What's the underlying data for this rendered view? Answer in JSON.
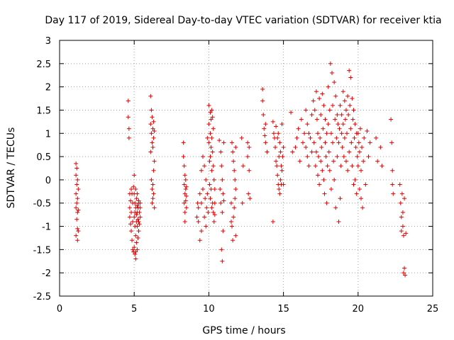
{
  "chart_data": {
    "type": "scatter",
    "title": "Day 117 of 2019, Sidereal Day-to-day VTEC variation (SDTVAR) for receiver ktia",
    "xlabel": "GPS time / hours",
    "ylabel": "SDTVAR / TECUs",
    "xlim": [
      0,
      25
    ],
    "ylim": [
      -2.5,
      3
    ],
    "xticks": [
      0,
      5,
      10,
      15,
      20,
      25
    ],
    "xtick_labels": [
      "0",
      "5",
      "10",
      "15",
      "20",
      "25"
    ],
    "yticks": [
      -2.5,
      -2,
      -1.5,
      -1,
      -0.5,
      0,
      0.5,
      1,
      1.5,
      2,
      2.5,
      3
    ],
    "ytick_labels": [
      "-2.5",
      "-2",
      "-1.5",
      "-1",
      "-0.5",
      "0",
      "0.5",
      "1",
      "1.5",
      "2",
      "2.5",
      "3"
    ],
    "grid": true,
    "marker": "+",
    "color": "#e00000",
    "series": [
      {
        "name": "SDTVAR",
        "x": [
          1.1,
          1.1,
          1.1,
          1.1,
          1.1,
          1.15,
          1.15,
          1.15,
          1.15,
          1.2,
          1.2,
          1.2,
          1.2,
          1.2,
          1.25,
          1.25,
          1.25,
          4.6,
          4.6,
          4.65,
          4.65,
          4.7,
          4.7,
          4.7,
          4.75,
          4.75,
          4.8,
          4.8,
          4.8,
          4.85,
          4.85,
          4.9,
          4.9,
          4.9,
          4.95,
          4.95,
          5.0,
          5.0,
          5.0,
          5.0,
          5.05,
          5.05,
          5.05,
          5.05,
          5.1,
          5.1,
          5.1,
          5.1,
          5.1,
          5.15,
          5.15,
          5.15,
          5.15,
          5.2,
          5.2,
          5.2,
          5.2,
          5.2,
          5.25,
          5.25,
          5.25,
          5.3,
          5.3,
          5.3,
          5.3,
          5.35,
          5.35,
          5.4,
          5.4,
          5.4,
          6.1,
          6.1,
          6.1,
          6.15,
          6.15,
          6.15,
          6.2,
          6.2,
          6.2,
          6.2,
          6.25,
          6.25,
          6.25,
          6.25,
          6.3,
          6.3,
          6.3,
          6.3,
          6.35,
          6.35,
          6.35,
          8.3,
          8.3,
          8.35,
          8.35,
          8.35,
          8.4,
          8.4,
          8.4,
          8.4,
          8.45,
          8.45,
          8.45,
          8.5,
          8.5,
          8.5,
          9.2,
          9.25,
          9.3,
          9.3,
          9.4,
          9.4,
          9.5,
          9.5,
          9.5,
          9.6,
          9.6,
          9.7,
          9.7,
          9.75,
          9.8,
          9.8,
          9.85,
          9.9,
          9.9,
          9.95,
          10.0,
          10.0,
          10.0,
          10.05,
          10.05,
          10.1,
          10.1,
          10.1,
          10.1,
          10.15,
          10.15,
          10.15,
          10.2,
          10.2,
          10.2,
          10.2,
          10.25,
          10.25,
          10.25,
          10.3,
          10.3,
          10.3,
          10.35,
          10.35,
          10.4,
          10.4,
          10.4,
          10.7,
          10.75,
          10.8,
          10.8,
          10.85,
          10.85,
          10.9,
          10.9,
          10.9,
          10.95,
          10.95,
          11.0,
          11.0,
          11.5,
          11.5,
          11.55,
          11.55,
          11.6,
          11.6,
          11.65,
          11.65,
          11.7,
          11.7,
          11.75,
          11.75,
          11.8,
          11.8,
          11.8,
          12.2,
          12.25,
          12.3,
          12.6,
          12.6,
          12.65,
          12.7,
          12.7,
          12.75,
          13.6,
          13.6,
          13.65,
          13.7,
          13.75,
          13.8,
          13.8,
          13.9,
          14.3,
          14.3,
          14.35,
          14.4,
          14.45,
          14.5,
          14.5,
          14.55,
          14.6,
          14.6,
          14.65,
          14.65,
          14.7,
          14.7,
          14.75,
          14.75,
          14.8,
          14.8,
          14.85,
          14.85,
          14.9,
          14.9,
          14.95,
          15.0,
          15.0,
          15.5,
          15.6,
          15.8,
          15.9,
          16.0,
          16.1,
          16.2,
          16.3,
          16.4,
          16.5,
          16.5,
          16.6,
          16.6,
          16.7,
          16.7,
          16.8,
          16.9,
          16.9,
          17.0,
          17.05,
          17.1,
          17.15,
          17.2,
          17.2,
          17.25,
          17.3,
          17.3,
          17.35,
          17.4,
          17.4,
          17.45,
          17.5,
          17.5,
          17.55,
          17.6,
          17.6,
          17.65,
          17.7,
          17.7,
          17.75,
          17.8,
          17.8,
          17.85,
          17.9,
          17.9,
          17.95,
          18.0,
          18.0,
          18.05,
          18.1,
          18.1,
          18.15,
          18.2,
          18.2,
          18.25,
          18.3,
          18.3,
          18.35,
          18.4,
          18.4,
          18.45,
          18.5,
          18.5,
          18.55,
          18.6,
          18.6,
          18.65,
          18.7,
          18.7,
          18.75,
          18.8,
          18.8,
          18.85,
          18.9,
          18.9,
          18.95,
          19.0,
          19.0,
          19.05,
          19.1,
          19.1,
          19.15,
          19.2,
          19.2,
          19.25,
          19.3,
          19.3,
          19.35,
          19.4,
          19.4,
          19.45,
          19.5,
          19.5,
          19.55,
          19.6,
          19.6,
          19.65,
          19.7,
          19.7,
          19.75,
          19.8,
          19.8,
          19.85,
          19.9,
          19.9,
          19.95,
          20.0,
          20.0,
          20.05,
          20.1,
          20.1,
          20.15,
          20.2,
          20.2,
          20.25,
          20.3,
          20.35,
          20.4,
          20.5,
          20.6,
          20.7,
          20.8,
          21.2,
          21.3,
          21.5,
          21.6,
          22.2,
          22.25,
          22.3,
          22.3,
          22.35,
          22.8,
          22.85,
          22.9,
          22.9,
          22.95,
          23.0,
          23.0,
          23.05,
          23.05,
          23.1,
          23.1,
          23.15,
          23.2
        ],
        "y": [
          0.35,
          0.1,
          -0.3,
          -0.6,
          -1.2,
          0.25,
          -0.1,
          -0.5,
          -0.85,
          0.0,
          -0.4,
          -0.7,
          -1.05,
          -1.3,
          -0.2,
          -0.65,
          -1.1,
          1.7,
          1.35,
          1.1,
          0.9,
          -0.3,
          -0.6,
          -0.8,
          -0.45,
          -0.95,
          -0.2,
          -0.7,
          -1.1,
          -0.3,
          -1.3,
          -0.5,
          -0.9,
          -1.5,
          -0.15,
          -1.55,
          0.1,
          -0.3,
          -0.8,
          -1.45,
          -0.5,
          -1.0,
          -1.6,
          -0.7,
          -0.2,
          -0.6,
          -1.2,
          -1.55,
          -1.7,
          -0.4,
          -0.9,
          -1.35,
          -0.75,
          -0.3,
          -0.7,
          -1.0,
          -1.5,
          -0.55,
          -0.85,
          -1.25,
          -0.6,
          -0.5,
          -0.9,
          -1.1,
          -0.45,
          -0.7,
          -0.95,
          -0.5,
          -0.8,
          -0.6,
          1.8,
          1.2,
          0.6,
          1.5,
          1.0,
          0.0,
          1.35,
          0.8,
          -0.2,
          -0.5,
          1.1,
          0.7,
          -0.1,
          -0.4,
          1.25,
          0.9,
          -0.3,
          0.2,
          -0.6,
          0.4,
          1.05,
          0.8,
          0.5,
          0.3,
          -0.1,
          -0.5,
          0.1,
          -0.3,
          -0.7,
          -0.9,
          -0.2,
          -0.45,
          0.0,
          -0.6,
          -0.35,
          -0.15,
          -0.8,
          -0.5,
          -0.6,
          -0.9,
          -0.3,
          -1.3,
          0.2,
          -0.5,
          -1.1,
          0.5,
          -0.2,
          0.3,
          -0.8,
          -0.4,
          0.0,
          -1.0,
          -0.6,
          0.9,
          -0.3,
          -0.7,
          1.6,
          1.2,
          0.8,
          0.4,
          -0.1,
          1.45,
          1.0,
          0.5,
          -0.4,
          1.3,
          0.7,
          -0.2,
          1.5,
          0.9,
          0.2,
          -0.6,
          1.35,
          0.6,
          -0.5,
          1.1,
          0.3,
          -0.7,
          0.0,
          -0.9,
          -0.2,
          -0.5,
          -0.75,
          0.85,
          -0.2,
          0.6,
          -0.5,
          0.3,
          -1.5,
          0.0,
          -0.7,
          -1.75,
          -0.3,
          -1.1,
          0.8,
          -0.45,
          -0.5,
          -0.9,
          0.8,
          -1.0,
          0.6,
          -1.3,
          0.4,
          -0.8,
          0.2,
          -0.6,
          0.0,
          -0.4,
          0.7,
          -0.2,
          -1.2,
          0.9,
          -0.5,
          0.3,
          0.8,
          0.5,
          -0.3,
          0.7,
          0.2,
          -0.4,
          1.95,
          1.7,
          1.4,
          1.1,
          0.95,
          0.8,
          1.2,
          0.6,
          -0.9,
          1.25,
          1.0,
          0.9,
          0.7,
          1.15,
          0.4,
          0.3,
          0.9,
          0.1,
          1.0,
          -0.1,
          0.5,
          -0.2,
          0.8,
          -0.3,
          0.6,
          0.0,
          0.3,
          -0.1,
          1.2,
          0.2,
          0.5,
          -0.1,
          0.7,
          1.45,
          0.6,
          0.7,
          0.9,
          1.1,
          0.4,
          1.3,
          0.8,
          1.0,
          1.5,
          0.7,
          1.2,
          0.5,
          1.0,
          0.3,
          0.9,
          1.4,
          0.6,
          1.7,
          0.8,
          1.5,
          0.3,
          1.9,
          0.6,
          1.3,
          0.1,
          1.0,
          0.5,
          1.75,
          -0.1,
          0.9,
          1.4,
          0.4,
          0.7,
          1.85,
          0.2,
          1.1,
          0.0,
          1.6,
          -0.3,
          0.8,
          1.3,
          0.5,
          -0.5,
          1.0,
          0.3,
          2.0,
          1.2,
          0.6,
          1.5,
          0.2,
          2.5,
          1.0,
          -0.2,
          2.3,
          0.8,
          1.6,
          0.4,
          2.1,
          0.0,
          1.3,
          1.8,
          -0.6,
          0.9,
          1.4,
          0.5,
          1.2,
          -0.9,
          0.8,
          1.1,
          -0.4,
          1.6,
          0.3,
          1.4,
          1.0,
          0.7,
          1.9,
          1.2,
          0.5,
          1.7,
          0.9,
          1.3,
          1.5,
          0.4,
          1.0,
          1.8,
          0.2,
          1.4,
          2.35,
          0.6,
          1.6,
          2.2,
          1.1,
          0.8,
          1.75,
          0.3,
          1.3,
          1.5,
          -0.1,
          0.9,
          1.2,
          0.0,
          0.7,
          1.0,
          -0.3,
          0.5,
          1.0,
          0.3,
          0.8,
          0.6,
          -0.2,
          1.1,
          0.2,
          -0.4,
          0.7,
          -0.6,
          0.4,
          0.9,
          -0.1,
          1.05,
          0.5,
          0.8,
          0.9,
          0.4,
          0.7,
          0.3,
          1.3,
          0.8,
          -0.1,
          0.2,
          -0.3,
          -0.1,
          -0.5,
          -0.8,
          -1.1,
          -0.3,
          -0.7,
          -1.0,
          -1.2,
          -2.0,
          -0.4,
          -1.9,
          -2.05,
          -1.15
        ]
      }
    ]
  }
}
